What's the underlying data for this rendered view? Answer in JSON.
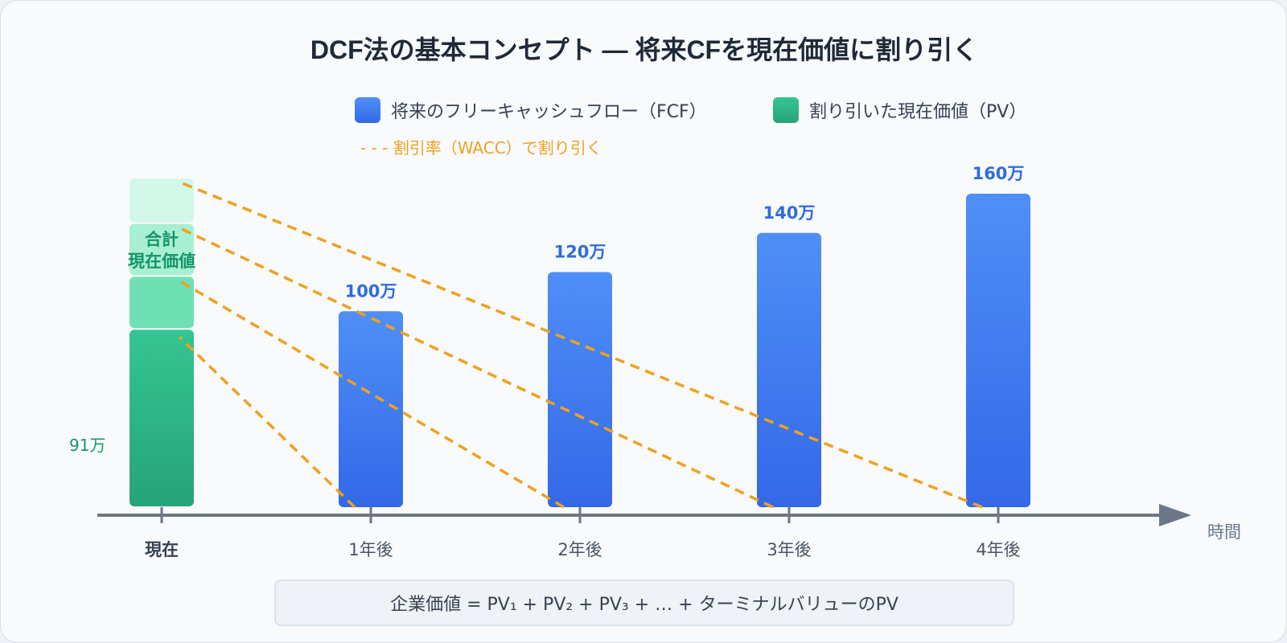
{
  "chart_data": {
    "type": "bar",
    "title": "DCF法の基本コンセプト — 将来CFを現在価値に割り引く",
    "categories": [
      "現在",
      "1年後",
      "2年後",
      "3年後",
      "4年後"
    ],
    "series": [
      {
        "name": "将来のフリーキャッシュフロー（FCF）",
        "color": "#3b73ec",
        "values": [
          null,
          100,
          120,
          140,
          160
        ],
        "value_labels": [
          "",
          "100万",
          "120万",
          "140万",
          "160万"
        ]
      },
      {
        "name": "割り引いた現在価値（PV）",
        "color": "#2fb984",
        "stacked_at": "現在",
        "segment_colors": [
          "#2fb984",
          "#6fe0b4",
          "#a8f0d3",
          "#d3f8ea"
        ],
        "segment_values": [
          91,
          27,
          27,
          23
        ]
      }
    ],
    "discount_line_label": "- - - 割引率（WACC）で割り引く",
    "discount_line_color": "#f0a020",
    "stack_label": [
      "合計",
      "現在価値"
    ],
    "pv_label": "91万",
    "axis_label": "時間",
    "formula": "企業価値 = PV₁ + PV₂ + PV₃ + … + ターミナルバリューのPV",
    "ylim": [
      0,
      175
    ]
  }
}
